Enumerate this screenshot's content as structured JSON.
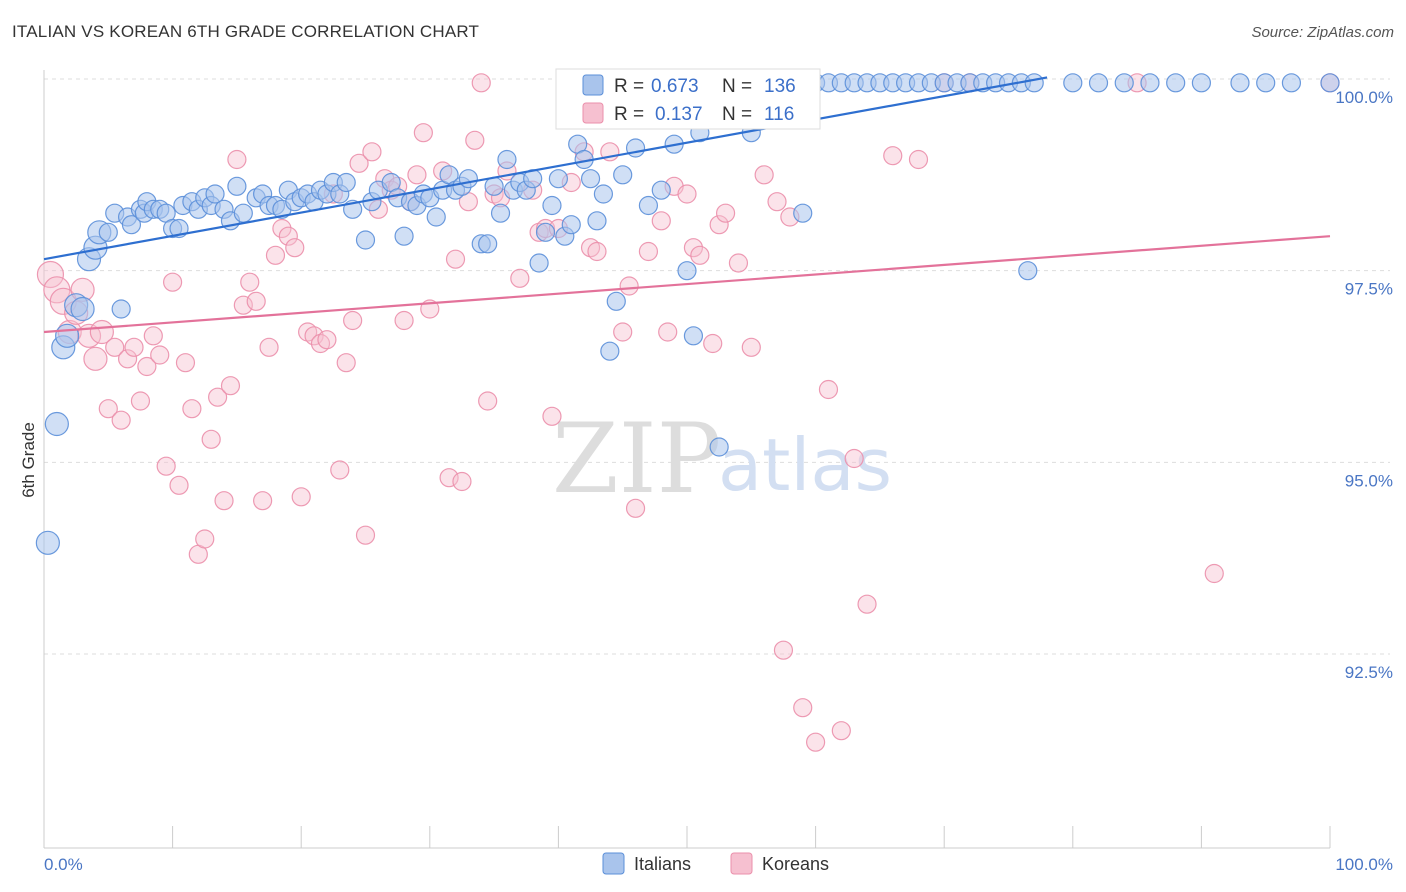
{
  "title": "ITALIAN VS KOREAN 6TH GRADE CORRELATION CHART",
  "source": "Source: ZipAtlas.com",
  "watermark": {
    "zip": "ZIP",
    "atlas": "atlas"
  },
  "colors": {
    "italians_fill": "#a9c4ec",
    "italians_stroke": "#5b8fd9",
    "italians_line": "#2e6fd0",
    "koreans_fill": "#f6c0d0",
    "koreans_stroke": "#eb8fab",
    "koreans_line": "#e3729a",
    "tick_text": "#4a76c4",
    "grid": "#dddddd"
  },
  "chart_data": {
    "type": "scatter",
    "title": "ITALIAN VS KOREAN 6TH GRADE CORRELATION CHART",
    "xlabel": "",
    "ylabel": "6th Grade",
    "xlim": [
      0,
      100
    ],
    "ylim": [
      90.3,
      100.25
    ],
    "x_tick_labels": [
      {
        "value": 0,
        "label": "0.0%"
      },
      {
        "value": 100,
        "label": "100.0%"
      }
    ],
    "y_tick_labels": [
      {
        "value": 100,
        "label": "100.0%"
      },
      {
        "value": 97.5,
        "label": "97.5%"
      },
      {
        "value": 95,
        "label": "95.0%"
      },
      {
        "value": 92.5,
        "label": "92.5%"
      }
    ],
    "grid": true,
    "legend_placement": "top-center",
    "legend": [
      {
        "r_label": "R =",
        "r_value": "0.673",
        "n_label": "N =",
        "n_value": "136"
      },
      {
        "r_label": "R =",
        "r_value": "0.137",
        "n_label": "N =",
        "n_value": "116"
      }
    ],
    "bottom_legend": [
      "Italians",
      "Koreans"
    ],
    "series": [
      {
        "name": "Italians",
        "trend": {
          "x": [
            0,
            78
          ],
          "y": [
            97.65,
            100.02
          ]
        },
        "points": [
          [
            0.3,
            93.95
          ],
          [
            1,
            95.5
          ],
          [
            1.5,
            96.5
          ],
          [
            1.8,
            96.65
          ],
          [
            2.5,
            97.05
          ],
          [
            3,
            97
          ],
          [
            3.5,
            97.65
          ],
          [
            4,
            97.8
          ],
          [
            4.3,
            98
          ],
          [
            5,
            98
          ],
          [
            5.5,
            98.25
          ],
          [
            6,
            97
          ],
          [
            6.5,
            98.2
          ],
          [
            6.8,
            98.1
          ],
          [
            7.5,
            98.3
          ],
          [
            7.8,
            98.25
          ],
          [
            8,
            98.4
          ],
          [
            8.5,
            98.3
          ],
          [
            9,
            98.3
          ],
          [
            9.5,
            98.25
          ],
          [
            10,
            98.05
          ],
          [
            10.5,
            98.05
          ],
          [
            10.8,
            98.35
          ],
          [
            11.5,
            98.4
          ],
          [
            12,
            98.3
          ],
          [
            12.5,
            98.45
          ],
          [
            13,
            98.35
          ],
          [
            13.3,
            98.5
          ],
          [
            14,
            98.3
          ],
          [
            14.5,
            98.15
          ],
          [
            15,
            98.6
          ],
          [
            15.5,
            98.25
          ],
          [
            16.5,
            98.45
          ],
          [
            17,
            98.5
          ],
          [
            17.5,
            98.35
          ],
          [
            18,
            98.35
          ],
          [
            18.5,
            98.3
          ],
          [
            19,
            98.55
          ],
          [
            19.5,
            98.4
          ],
          [
            20,
            98.45
          ],
          [
            20.5,
            98.5
          ],
          [
            21,
            98.4
          ],
          [
            21.5,
            98.55
          ],
          [
            22,
            98.5
          ],
          [
            22.5,
            98.65
          ],
          [
            23,
            98.5
          ],
          [
            23.5,
            98.65
          ],
          [
            24,
            98.3
          ],
          [
            25,
            97.9
          ],
          [
            25.5,
            98.4
          ],
          [
            26,
            98.55
          ],
          [
            27,
            98.65
          ],
          [
            27.5,
            98.45
          ],
          [
            28,
            97.95
          ],
          [
            28.5,
            98.4
          ],
          [
            29,
            98.35
          ],
          [
            29.5,
            98.5
          ],
          [
            30,
            98.45
          ],
          [
            30.5,
            98.2
          ],
          [
            31,
            98.55
          ],
          [
            31.5,
            98.75
          ],
          [
            32,
            98.55
          ],
          [
            32.5,
            98.6
          ],
          [
            33,
            98.7
          ],
          [
            34,
            97.85
          ],
          [
            34.5,
            97.85
          ],
          [
            35,
            98.6
          ],
          [
            35.5,
            98.25
          ],
          [
            36,
            98.95
          ],
          [
            36.5,
            98.55
          ],
          [
            37,
            98.65
          ],
          [
            37.5,
            98.55
          ],
          [
            38,
            98.7
          ],
          [
            38.5,
            97.6
          ],
          [
            39,
            98
          ],
          [
            39.5,
            98.35
          ],
          [
            40,
            98.7
          ],
          [
            40.5,
            97.95
          ],
          [
            41,
            98.1
          ],
          [
            41.5,
            99.15
          ],
          [
            42,
            98.95
          ],
          [
            42.5,
            98.7
          ],
          [
            43,
            98.15
          ],
          [
            43.5,
            98.5
          ],
          [
            44,
            96.45
          ],
          [
            44.5,
            97.1
          ],
          [
            45,
            98.75
          ],
          [
            46,
            99.1
          ],
          [
            47,
            98.35
          ],
          [
            48,
            98.55
          ],
          [
            49,
            99.15
          ],
          [
            50,
            97.5
          ],
          [
            50.5,
            96.65
          ],
          [
            51,
            99.3
          ],
          [
            52,
            99.95
          ],
          [
            52.5,
            95.2
          ],
          [
            53,
            99.95
          ],
          [
            53.5,
            99.95
          ],
          [
            54,
            99.95
          ],
          [
            55,
            99.3
          ],
          [
            56,
            99.95
          ],
          [
            57,
            99.95
          ],
          [
            58,
            99.95
          ],
          [
            59,
            98.25
          ],
          [
            60,
            99.95
          ],
          [
            61,
            99.95
          ],
          [
            62,
            99.95
          ],
          [
            63,
            99.95
          ],
          [
            64,
            99.95
          ],
          [
            65,
            99.95
          ],
          [
            66,
            99.95
          ],
          [
            67,
            99.95
          ],
          [
            68,
            99.95
          ],
          [
            69,
            99.95
          ],
          [
            70,
            99.95
          ],
          [
            71,
            99.95
          ],
          [
            72,
            99.95
          ],
          [
            73,
            99.95
          ],
          [
            74,
            99.95
          ],
          [
            75,
            99.95
          ],
          [
            76,
            99.95
          ],
          [
            76.5,
            97.5
          ],
          [
            77,
            99.95
          ],
          [
            80,
            99.95
          ],
          [
            82,
            99.95
          ],
          [
            84,
            99.95
          ],
          [
            86,
            99.95
          ],
          [
            88,
            99.95
          ],
          [
            90,
            99.95
          ],
          [
            93,
            99.95
          ],
          [
            95,
            99.95
          ],
          [
            97,
            99.95
          ],
          [
            100,
            99.95
          ],
          [
            42.5,
            99.95
          ],
          [
            44,
            99.95
          ],
          [
            46,
            99.95
          ],
          [
            48,
            99.95
          ],
          [
            49.5,
            99.95
          ]
        ]
      },
      {
        "name": "Koreans",
        "trend": {
          "x": [
            0,
            100
          ],
          "y": [
            96.7,
            97.95
          ]
        },
        "points": [
          [
            0.5,
            97.45
          ],
          [
            1,
            97.25
          ],
          [
            1.5,
            97.1
          ],
          [
            2,
            96.7
          ],
          [
            2.5,
            96.95
          ],
          [
            3,
            97.25
          ],
          [
            3.5,
            96.65
          ],
          [
            4,
            96.35
          ],
          [
            4.5,
            96.7
          ],
          [
            5,
            95.7
          ],
          [
            5.5,
            96.5
          ],
          [
            6,
            95.55
          ],
          [
            6.5,
            96.35
          ],
          [
            7,
            96.5
          ],
          [
            7.5,
            95.8
          ],
          [
            8,
            96.25
          ],
          [
            8.5,
            96.65
          ],
          [
            9,
            96.4
          ],
          [
            9.5,
            94.95
          ],
          [
            10,
            97.35
          ],
          [
            10.5,
            94.7
          ],
          [
            11,
            96.3
          ],
          [
            11.5,
            95.7
          ],
          [
            12,
            93.8
          ],
          [
            12.5,
            94
          ],
          [
            13,
            95.3
          ],
          [
            13.5,
            95.85
          ],
          [
            14,
            94.5
          ],
          [
            14.5,
            96.0
          ],
          [
            15,
            98.95
          ],
          [
            15.5,
            97.05
          ],
          [
            16,
            97.35
          ],
          [
            16.5,
            97.1
          ],
          [
            17,
            94.5
          ],
          [
            17.5,
            96.5
          ],
          [
            18,
            97.7
          ],
          [
            18.5,
            98.05
          ],
          [
            19,
            97.95
          ],
          [
            19.5,
            97.8
          ],
          [
            20,
            94.55
          ],
          [
            20.5,
            96.7
          ],
          [
            21,
            96.65
          ],
          [
            21.5,
            96.55
          ],
          [
            22,
            96.6
          ],
          [
            22.5,
            98.5
          ],
          [
            23,
            94.9
          ],
          [
            23.5,
            96.3
          ],
          [
            24,
            96.85
          ],
          [
            24.5,
            98.9
          ],
          [
            25,
            94.05
          ],
          [
            25.5,
            99.05
          ],
          [
            26,
            98.3
          ],
          [
            26.5,
            98.7
          ],
          [
            27,
            98.55
          ],
          [
            27.5,
            98.6
          ],
          [
            28,
            96.85
          ],
          [
            28.5,
            98.4
          ],
          [
            29,
            98.75
          ],
          [
            29.5,
            99.3
          ],
          [
            30,
            97.0
          ],
          [
            31,
            98.8
          ],
          [
            31.5,
            94.8
          ],
          [
            32,
            97.65
          ],
          [
            32.5,
            94.75
          ],
          [
            33,
            98.4
          ],
          [
            33.5,
            99.2
          ],
          [
            34,
            99.95
          ],
          [
            34.5,
            95.8
          ],
          [
            35,
            98.5
          ],
          [
            35.5,
            98.45
          ],
          [
            36,
            98.8
          ],
          [
            37,
            97.4
          ],
          [
            38,
            98.55
          ],
          [
            38.5,
            98.0
          ],
          [
            39,
            98.05
          ],
          [
            39.5,
            95.6
          ],
          [
            40,
            98.05
          ],
          [
            41,
            98.65
          ],
          [
            42,
            99.05
          ],
          [
            42.5,
            97.8
          ],
          [
            43,
            97.75
          ],
          [
            44,
            99.05
          ],
          [
            44.5,
            99.95
          ],
          [
            45,
            96.7
          ],
          [
            45.5,
            97.3
          ],
          [
            46,
            94.4
          ],
          [
            47,
            97.75
          ],
          [
            48,
            98.15
          ],
          [
            48.5,
            96.7
          ],
          [
            49,
            98.6
          ],
          [
            50,
            98.5
          ],
          [
            50.5,
            97.8
          ],
          [
            51,
            97.7
          ],
          [
            52,
            96.55
          ],
          [
            52.5,
            98.1
          ],
          [
            53,
            98.25
          ],
          [
            54,
            97.6
          ],
          [
            55,
            96.5
          ],
          [
            56,
            98.75
          ],
          [
            57,
            98.4
          ],
          [
            57.5,
            92.55
          ],
          [
            58,
            98.2
          ],
          [
            59,
            91.8
          ],
          [
            60,
            91.35
          ],
          [
            61,
            95.95
          ],
          [
            62,
            91.5
          ],
          [
            63,
            95.05
          ],
          [
            64,
            93.15
          ],
          [
            66,
            99.0
          ],
          [
            68,
            98.95
          ],
          [
            70,
            99.95
          ],
          [
            72,
            99.95
          ],
          [
            85,
            99.95
          ],
          [
            91,
            93.55
          ],
          [
            100,
            99.95
          ]
        ]
      }
    ]
  }
}
